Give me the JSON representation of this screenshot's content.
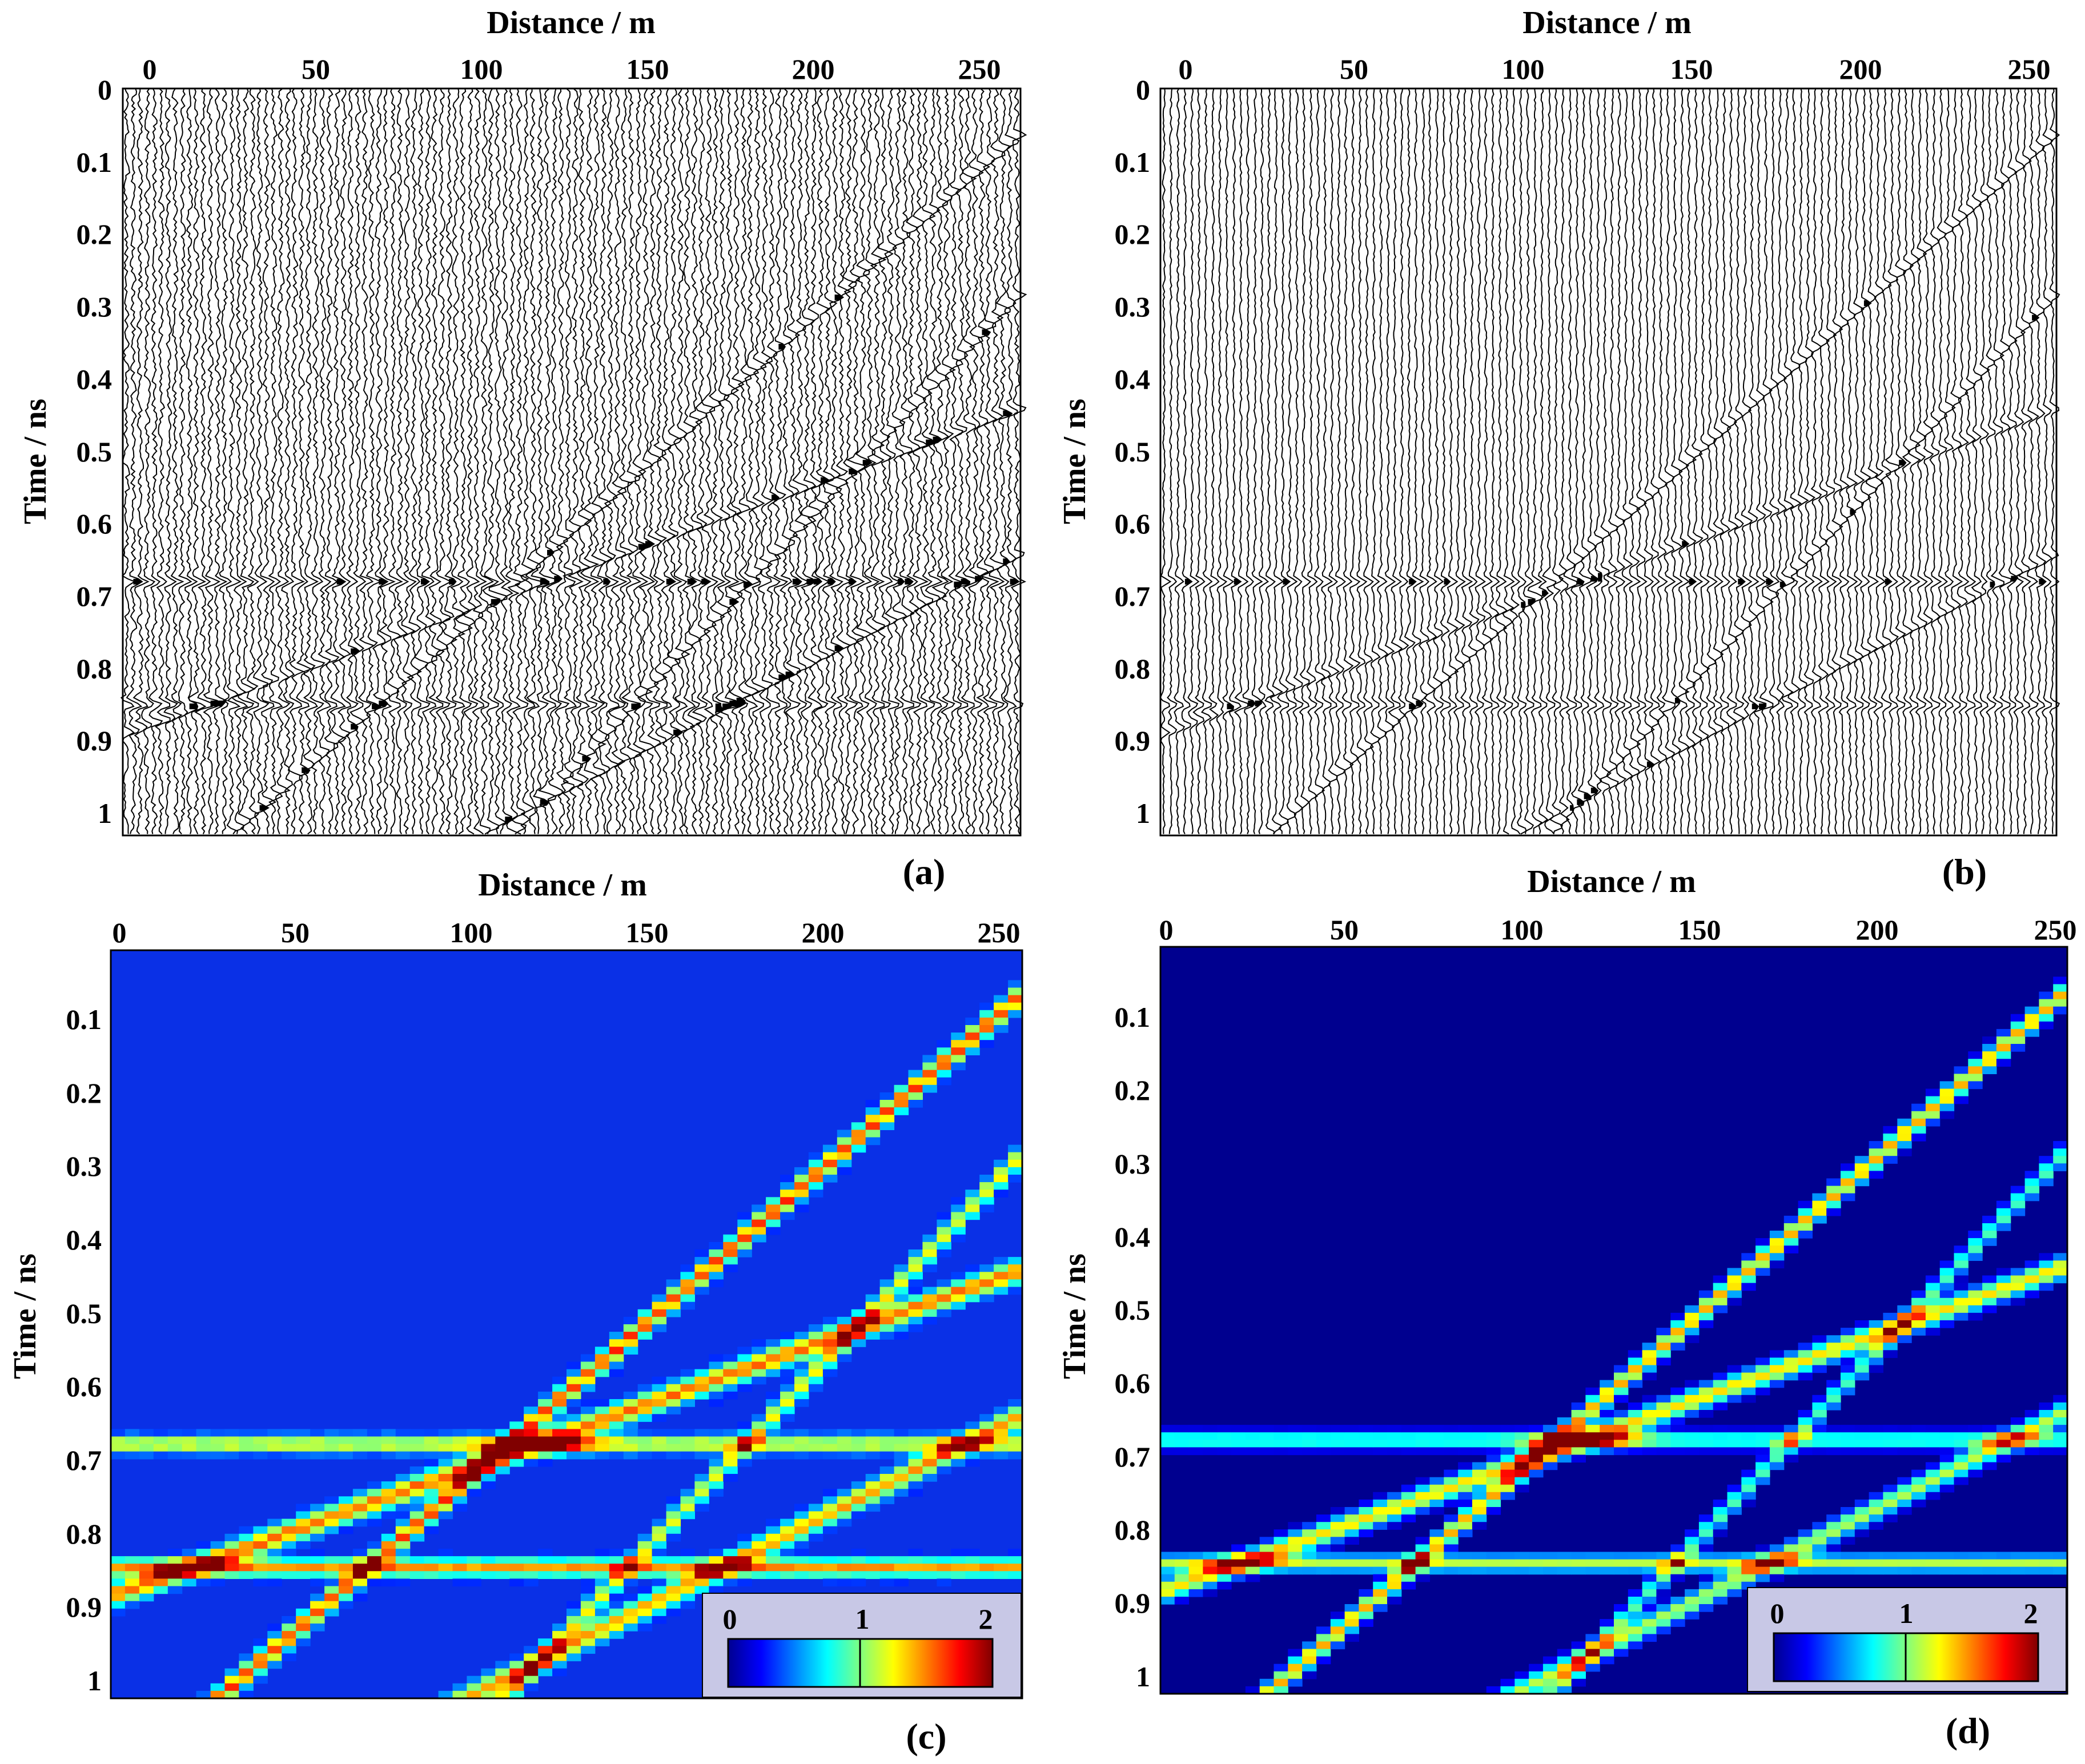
{
  "panels": [
    {
      "label": "(a)",
      "kind": "wiggle",
      "xlabel": "Distance / m",
      "ylabel": "Time / ns",
      "xticks": [
        "0",
        "50",
        "100",
        "150",
        "200",
        "250"
      ],
      "yticks": [
        "0",
        "0.1",
        "0.2",
        "0.3",
        "0.4",
        "0.5",
        "0.6",
        "0.7",
        "0.8",
        "0.9",
        "1"
      ],
      "xlim": [
        0,
        255
      ],
      "ylim": [
        0,
        1.03
      ],
      "noise": "high"
    },
    {
      "label": "(b)",
      "kind": "wiggle",
      "xlabel": "Distance / m",
      "ylabel": "Time / ns",
      "xticks": [
        "0",
        "50",
        "100",
        "150",
        "200",
        "250"
      ],
      "yticks": [
        "0",
        "0.1",
        "0.2",
        "0.3",
        "0.4",
        "0.5",
        "0.6",
        "0.7",
        "0.8",
        "0.9",
        "1"
      ],
      "xlim": [
        0,
        255
      ],
      "ylim": [
        0,
        1.03
      ],
      "noise": "low"
    },
    {
      "label": "(c)",
      "kind": "heatmap",
      "xlabel": "Distance / m",
      "ylabel": "Time / ns",
      "xticks": [
        "0",
        "50",
        "100",
        "150",
        "200",
        "250"
      ],
      "yticks": [
        "0.1",
        "0.2",
        "0.3",
        "0.4",
        "0.5",
        "0.6",
        "0.7",
        "0.8",
        "0.9",
        "1"
      ],
      "xlim": [
        0,
        255
      ],
      "ylim": [
        0,
        1.03
      ],
      "background": "noisy",
      "colorbar": {
        "ticks": [
          "0",
          "1",
          "2"
        ],
        "range": [
          0,
          2
        ]
      }
    },
    {
      "label": "(d)",
      "kind": "heatmap",
      "xlabel": "Distance / m",
      "ylabel": "Time / ns",
      "xticks": [
        "0",
        "50",
        "100",
        "150",
        "200",
        "250"
      ],
      "yticks": [
        "0.1",
        "0.2",
        "0.3",
        "0.4",
        "0.5",
        "0.6",
        "0.7",
        "0.8",
        "0.9",
        "1"
      ],
      "xlim": [
        0,
        255
      ],
      "ylim": [
        0,
        1.03
      ],
      "background": "clean",
      "colorbar": {
        "ticks": [
          "0",
          "1",
          "2"
        ],
        "range": [
          0,
          2
        ]
      }
    }
  ],
  "chart_data": [
    {
      "type": "heatmap",
      "panel": "(a)",
      "xlabel": "Distance / m",
      "ylabel": "Time / ns",
      "xlim": [
        0,
        255
      ],
      "ylim": [
        0,
        1.03
      ],
      "events": [
        {
          "kind": "horizontal",
          "t": 0.68
        },
        {
          "kind": "horizontal",
          "t": 0.85
        },
        {
          "kind": "linear",
          "t0": 0.89,
          "t1": 0.44
        },
        {
          "kind": "linear",
          "t0": 1.16,
          "t1": 0.06
        },
        {
          "kind": "linear",
          "t0": 1.28,
          "t1": 0.64
        },
        {
          "kind": "linear",
          "t0": 1.6,
          "t1": 0.28
        }
      ]
    },
    {
      "type": "heatmap",
      "panel": "(b)",
      "xlabel": "Distance / m",
      "ylabel": "Time / ns",
      "xlim": [
        0,
        255
      ],
      "ylim": [
        0,
        1.03
      ],
      "events": [
        {
          "kind": "horizontal",
          "t": 0.68
        },
        {
          "kind": "horizontal",
          "t": 0.85
        },
        {
          "kind": "linear",
          "t0": 0.89,
          "t1": 0.44
        },
        {
          "kind": "linear",
          "t0": 1.16,
          "t1": 0.06
        },
        {
          "kind": "linear",
          "t0": 1.28,
          "t1": 0.64
        },
        {
          "kind": "linear",
          "t0": 1.6,
          "t1": 0.28
        }
      ]
    },
    {
      "type": "heatmap",
      "panel": "(c)",
      "xlabel": "Distance / m",
      "ylabel": "Time / ns",
      "xlim": [
        0,
        255
      ],
      "ylim": [
        0,
        1.03
      ],
      "colorbar_range": [
        0,
        2
      ],
      "events": [
        {
          "kind": "horizontal",
          "t": 0.68,
          "amp": 1.0
        },
        {
          "kind": "horizontal",
          "t": 0.85,
          "amp": 1.2
        },
        {
          "kind": "linear",
          "t0": 0.89,
          "t1": 0.44,
          "amp": 1.3
        },
        {
          "kind": "linear",
          "t0": 1.16,
          "t1": 0.06,
          "amp": 1.4
        },
        {
          "kind": "linear",
          "t0": 1.28,
          "t1": 0.64,
          "amp": 1.2
        },
        {
          "kind": "linear",
          "t0": 1.6,
          "t1": 0.28,
          "amp": 1.0
        }
      ],
      "hotspot": {
        "x": 120,
        "t": 0.68,
        "value": 2
      }
    },
    {
      "type": "heatmap",
      "panel": "(d)",
      "xlabel": "Distance / m",
      "ylabel": "Time / ns",
      "xlim": [
        0,
        255
      ],
      "ylim": [
        0,
        1.03
      ],
      "colorbar_range": [
        0,
        2
      ],
      "events": [
        {
          "kind": "horizontal",
          "t": 0.68,
          "amp": 0.9
        },
        {
          "kind": "horizontal",
          "t": 0.85,
          "amp": 1.1
        },
        {
          "kind": "linear",
          "t0": 0.89,
          "t1": 0.44,
          "amp": 1.3
        },
        {
          "kind": "linear",
          "t0": 1.16,
          "t1": 0.06,
          "amp": 1.4
        },
        {
          "kind": "linear",
          "t0": 1.28,
          "t1": 0.64,
          "amp": 1.1
        },
        {
          "kind": "linear",
          "t0": 1.6,
          "t1": 0.28,
          "amp": 0.9
        }
      ],
      "hotspot": {
        "x": 120,
        "t": 0.68,
        "value": 2
      }
    }
  ]
}
